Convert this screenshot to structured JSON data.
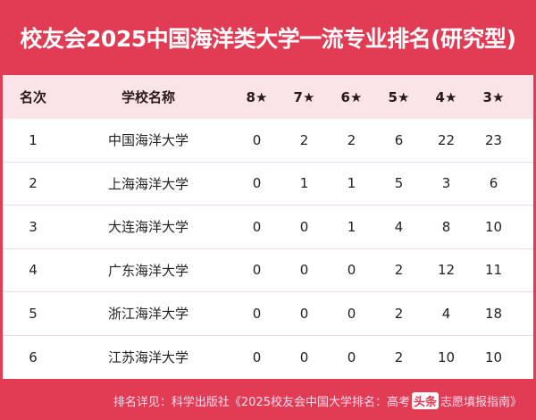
{
  "title": "校友会2025中国海洋类大学一流专业排名(研究型)",
  "headers": [
    "名次",
    "学校名称",
    "8★",
    "7★",
    "6★",
    "5★",
    "4★",
    "3★"
  ],
  "rows": [
    [
      "1",
      "中国海洋大学",
      "0",
      "2",
      "2",
      "6",
      "22",
      "23"
    ],
    [
      "2",
      "上海海洋大学",
      "0",
      "1",
      "1",
      "5",
      "3",
      "6"
    ],
    [
      "3",
      "大连海洋大学",
      "0",
      "0",
      "1",
      "4",
      "8",
      "10"
    ],
    [
      "4",
      "广东海洋大学",
      "0",
      "0",
      "0",
      "2",
      "12",
      "11"
    ],
    [
      "5",
      "浙江海洋大学",
      "0",
      "0",
      "0",
      "2",
      "4",
      "18"
    ],
    [
      "6",
      "江苏海洋大学",
      "0",
      "0",
      "0",
      "2",
      "10",
      "10"
    ]
  ],
  "footer": {
    "text": "排名详见：科学出版社《2025校友会中国大学排名：高考",
    "watermark": "头条",
    "text_tail": "志愿填报指南》"
  },
  "colors": {
    "accent": "#e23c55",
    "header_bg": "#fbe4e7"
  }
}
